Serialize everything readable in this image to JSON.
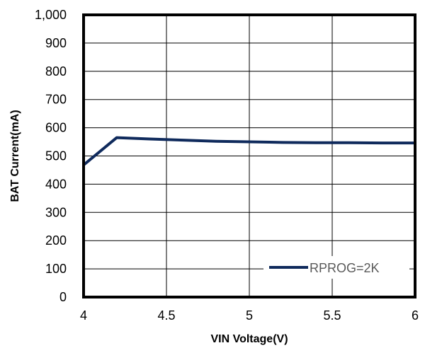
{
  "chart_data": {
    "type": "line",
    "title": "",
    "xlabel": "VIN Voltage(V)",
    "ylabel": "BAT Current(mA)",
    "xlim": [
      4,
      6
    ],
    "ylim": [
      0,
      1000
    ],
    "x_ticks": [
      "4",
      "4.5",
      "5",
      "5.5",
      "6"
    ],
    "y_ticks": [
      "0",
      "100",
      "200",
      "300",
      "400",
      "500",
      "600",
      "700",
      "800",
      "900",
      "1,000"
    ],
    "grid": true,
    "legend_position": "bottom-right",
    "series": [
      {
        "name": "RPROG=2K",
        "color": "#0f2a5c",
        "x": [
          4.0,
          4.2,
          4.4,
          4.6,
          4.8,
          5.0,
          5.2,
          5.4,
          5.6,
          5.8,
          6.0
        ],
        "y": [
          468,
          565,
          560,
          556,
          552,
          550,
          548,
          547,
          547,
          546,
          546
        ]
      }
    ]
  }
}
